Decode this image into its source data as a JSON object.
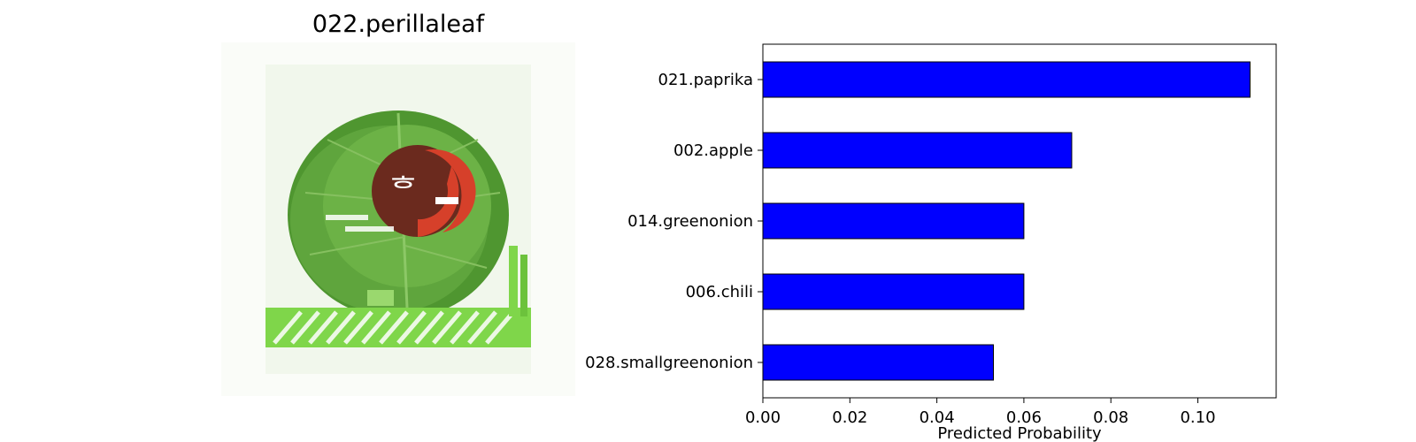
{
  "image": {
    "title": "022.perillaleaf",
    "subject": "perilla-leaf-package-photo",
    "colors": {
      "leaf": "#5a9e3a",
      "leaf_light": "#8cc866",
      "logo_dark": "#6b2a1e",
      "logo_red": "#d6402a",
      "field": "#7fd64a",
      "background": "#f3f8ef"
    }
  },
  "chart_data": {
    "type": "bar",
    "orientation": "horizontal",
    "categories": [
      "021.paprika",
      "002.apple",
      "014.greenonion",
      "006.chili",
      "028.smallgreenonion"
    ],
    "values": [
      0.112,
      0.071,
      0.06,
      0.06,
      0.053
    ],
    "xlabel": "Predicted Probability",
    "ylabel": "",
    "xlim": [
      0.0,
      0.118
    ],
    "xticks": [
      "0.00",
      "0.02",
      "0.04",
      "0.06",
      "0.08",
      "0.10"
    ],
    "bar_color": "#0000ff",
    "edge_color": "#000000",
    "grid": false
  }
}
